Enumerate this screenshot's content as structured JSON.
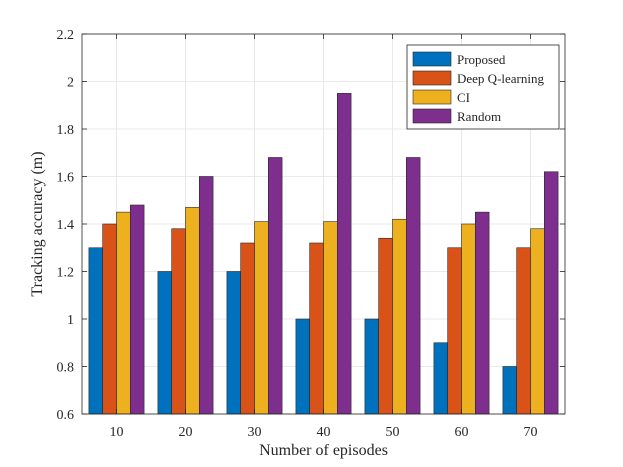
{
  "chart_data": {
    "type": "bar",
    "title": "",
    "xlabel": "Number of episodes",
    "ylabel": "Tracking accuracy (m)",
    "categories": [
      "10",
      "20",
      "30",
      "40",
      "50",
      "60",
      "70"
    ],
    "ylim": [
      0.6,
      2.2
    ],
    "yticks": [
      "0.6",
      "0.8",
      "1",
      "1.2",
      "1.4",
      "1.6",
      "1.8",
      "2",
      "2.2"
    ],
    "grid": true,
    "legend_position": "top-right",
    "series": [
      {
        "name": "Proposed",
        "color": "#0072BD",
        "values": [
          1.3,
          1.2,
          1.2,
          1.0,
          1.0,
          0.9,
          0.8
        ]
      },
      {
        "name": "Deep Q-learning",
        "color": "#D95319",
        "values": [
          1.4,
          1.38,
          1.32,
          1.32,
          1.34,
          1.3,
          1.3
        ]
      },
      {
        "name": "CI",
        "color": "#EDB120",
        "values": [
          1.45,
          1.47,
          1.41,
          1.41,
          1.42,
          1.4,
          1.38
        ]
      },
      {
        "name": "Random",
        "color": "#7E2F8E",
        "values": [
          1.48,
          1.6,
          1.68,
          1.95,
          1.68,
          1.45,
          1.62
        ]
      }
    ]
  }
}
